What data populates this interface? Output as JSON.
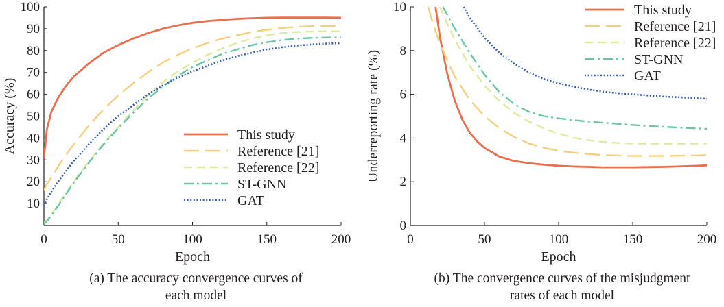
{
  "chart_data": [
    {
      "type": "line",
      "xlabel": "Epoch",
      "ylabel": "Accuracy (%)",
      "xlim": [
        0,
        200
      ],
      "ylim": [
        0,
        100
      ],
      "xticks": [
        0,
        50,
        100,
        150,
        200
      ],
      "yticks": [
        10,
        20,
        30,
        40,
        50,
        60,
        70,
        80,
        90,
        100
      ],
      "grid": false,
      "legend_position": "bottom-right",
      "caption": [
        "(a) The accuracy convergence curves of",
        "each model"
      ],
      "x": [
        0,
        2,
        5,
        10,
        15,
        20,
        30,
        40,
        50,
        60,
        70,
        80,
        90,
        100,
        110,
        120,
        130,
        140,
        150,
        160,
        170,
        180,
        190,
        200
      ],
      "series": [
        {
          "name": "This study",
          "color": "#e8704f",
          "dash": "solid",
          "values": [
            31,
            44,
            52,
            59,
            64,
            68,
            74,
            79,
            82.5,
            85.5,
            88,
            90,
            91.5,
            92.7,
            93.5,
            94,
            94.5,
            94.8,
            95,
            95.1,
            95.1,
            95.1,
            95.1,
            95
          ]
        },
        {
          "name": "Reference [21]",
          "color": "#f5cf7c",
          "dash": "long",
          "values": [
            16,
            19,
            22,
            27.5,
            32.5,
            37,
            45.5,
            53,
            59.5,
            65,
            70,
            74.5,
            78,
            81,
            83.5,
            85.5,
            87,
            88.5,
            89.5,
            90.3,
            90.8,
            91.2,
            91.3,
            91.3
          ]
        },
        {
          "name": "Reference [22]",
          "color": "#deea9f",
          "dash": "medium",
          "values": [
            1,
            2.5,
            5,
            10,
            15,
            20,
            29,
            37.5,
            45,
            52.5,
            59.5,
            65.5,
            70.5,
            74.5,
            78,
            81,
            83.5,
            85.5,
            87,
            88,
            88.5,
            88.7,
            88.8,
            88.8
          ]
        },
        {
          "name": "ST-GNN",
          "color": "#6cc6a6",
          "dash": "dashdot",
          "values": [
            0.5,
            2,
            4.5,
            9.5,
            14.5,
            19.5,
            28.5,
            37,
            44.5,
            51.5,
            58,
            63.5,
            68.5,
            72.5,
            75.5,
            78.5,
            80.5,
            82.5,
            83.8,
            84.8,
            85.5,
            85.8,
            86,
            86
          ]
        },
        {
          "name": "GAT",
          "color": "#3c5fa9",
          "dash": "dotted",
          "values": [
            9,
            12,
            15.5,
            20.5,
            25,
            29.5,
            37,
            44,
            50,
            55,
            60,
            64,
            67.5,
            70.5,
            73,
            75.5,
            77.5,
            79,
            80.5,
            81.5,
            82.3,
            82.8,
            83.2,
            83.4
          ]
        }
      ]
    },
    {
      "type": "line",
      "xlabel": "Epoch",
      "ylabel": "Underreporting rate (%)",
      "xlim": [
        0,
        200
      ],
      "ylim": [
        0,
        10
      ],
      "xticks": [
        0,
        50,
        100,
        150,
        200
      ],
      "yticks": [
        0,
        2,
        4,
        6,
        8,
        10
      ],
      "grid": false,
      "legend_position": "top-right",
      "caption": [
        "(b) The convergence curves of the misjudgment",
        "rates of each model"
      ],
      "series": [
        {
          "name": "This study",
          "color": "#e8704f",
          "dash": "solid",
          "x": [
            17,
            20,
            25,
            30,
            35,
            40,
            45,
            50,
            60,
            70,
            80,
            90,
            100,
            110,
            120,
            130,
            140,
            150,
            160,
            170,
            180,
            190,
            200
          ],
          "values": [
            10,
            8.6,
            6.9,
            5.7,
            4.85,
            4.25,
            3.85,
            3.55,
            3.15,
            2.95,
            2.85,
            2.78,
            2.73,
            2.7,
            2.68,
            2.66,
            2.66,
            2.66,
            2.67,
            2.68,
            2.7,
            2.72,
            2.75
          ]
        },
        {
          "name": "Reference [21]",
          "color": "#f5cf7c",
          "dash": "long",
          "x": [
            12,
            15,
            20,
            30,
            40,
            50,
            60,
            70,
            80,
            90,
            100,
            110,
            120,
            130,
            140,
            150,
            160,
            170,
            180,
            190,
            200
          ],
          "values": [
            10,
            9.3,
            8.3,
            6.8,
            5.75,
            5.0,
            4.45,
            4.05,
            3.75,
            3.55,
            3.42,
            3.33,
            3.27,
            3.22,
            3.2,
            3.18,
            3.18,
            3.18,
            3.19,
            3.2,
            3.22
          ]
        },
        {
          "name": "Reference [22]",
          "color": "#deea9f",
          "dash": "medium",
          "x": [
            20,
            25,
            30,
            40,
            50,
            60,
            70,
            80,
            90,
            100,
            110,
            120,
            130,
            140,
            150,
            160,
            170,
            180,
            190,
            200
          ],
          "values": [
            10,
            9.2,
            8.5,
            7.3,
            6.4,
            5.7,
            5.15,
            4.75,
            4.45,
            4.2,
            4.02,
            3.9,
            3.82,
            3.77,
            3.75,
            3.74,
            3.74,
            3.74,
            3.74,
            3.75
          ]
        },
        {
          "name": "ST-GNN",
          "color": "#6cc6a6",
          "dash": "dashdot",
          "x": [
            22,
            30,
            40,
            50,
            60,
            70,
            80,
            90,
            100,
            110,
            120,
            130,
            140,
            150,
            160,
            170,
            180,
            190,
            200
          ],
          "values": [
            10,
            9.0,
            7.9,
            6.9,
            6.1,
            5.55,
            5.2,
            5.0,
            4.9,
            4.82,
            4.75,
            4.7,
            4.65,
            4.6,
            4.55,
            4.52,
            4.48,
            4.45,
            4.42
          ]
        },
        {
          "name": "GAT",
          "color": "#3c5fa9",
          "dash": "dotted",
          "x": [
            36,
            40,
            50,
            60,
            70,
            80,
            90,
            100,
            110,
            120,
            130,
            140,
            150,
            160,
            170,
            180,
            190,
            200
          ],
          "values": [
            10,
            9.5,
            8.6,
            7.9,
            7.4,
            7.0,
            6.7,
            6.5,
            6.35,
            6.22,
            6.12,
            6.05,
            6.0,
            5.95,
            5.9,
            5.87,
            5.83,
            5.8
          ]
        }
      ]
    }
  ]
}
